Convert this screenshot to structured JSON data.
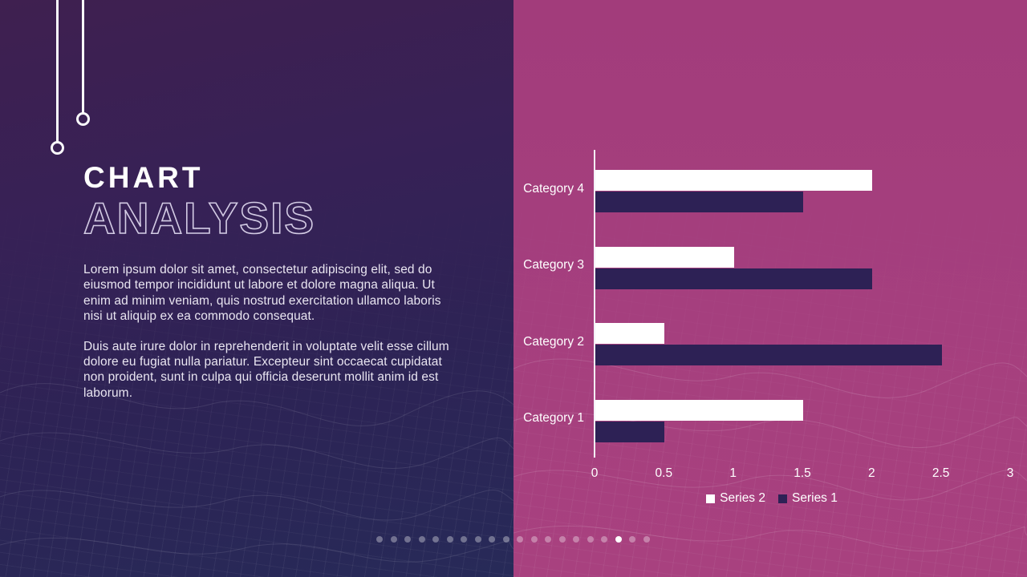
{
  "slide": {
    "title_line1": "CHART",
    "title_line2": "ANALYSIS",
    "paragraph1": "Lorem ipsum dolor sit amet, consectetur adipiscing elit, sed do eiusmod tempor incididunt ut labore et dolore magna aliqua. Ut enim ad minim veniam, quis nostrud exercitation ullamco laboris nisi ut aliquip ex ea commodo consequat.",
    "paragraph2": "Duis aute irure dolor in reprehenderit in voluptate velit esse cillum dolore eu fugiat nulla pariatur. Excepteur sint occaecat cupidatat non proident, sunt in culpa qui officia deserunt mollit anim id est laborum."
  },
  "chart_data": {
    "type": "bar",
    "orientation": "horizontal",
    "categories": [
      "Category 1",
      "Category 2",
      "Category 3",
      "Category 4"
    ],
    "series": [
      {
        "name": "Series 1",
        "color": "#2d2155",
        "values": [
          0.5,
          2.5,
          2.0,
          1.5
        ]
      },
      {
        "name": "Series 2",
        "color": "#ffffff",
        "values": [
          1.5,
          0.5,
          1.0,
          2.0
        ]
      }
    ],
    "xlim": [
      0,
      3
    ],
    "x_ticks": [
      "0",
      "0.5",
      "1",
      "1.5",
      "2",
      "2.5",
      "3"
    ],
    "grid": false,
    "legend_position": "bottom",
    "legend_order": [
      "Series 2",
      "Series 1"
    ],
    "category_order_top_to_bottom": [
      "Category 4",
      "Category 3",
      "Category 2",
      "Category 1"
    ]
  },
  "pagination": {
    "total": 20,
    "active_index": 18
  },
  "colors": {
    "left_bg_top": "#3f2050",
    "left_bg_bottom": "#272a58",
    "right_bg": "#a43e7d",
    "series1": "#2d2155",
    "series2": "#ffffff",
    "title_fill": "#ffffff",
    "title_outline": "#d3cbe4",
    "body_text": "#e9e5f1",
    "axis_line": "#f4f1f7",
    "dot_active": "#ffffff"
  }
}
